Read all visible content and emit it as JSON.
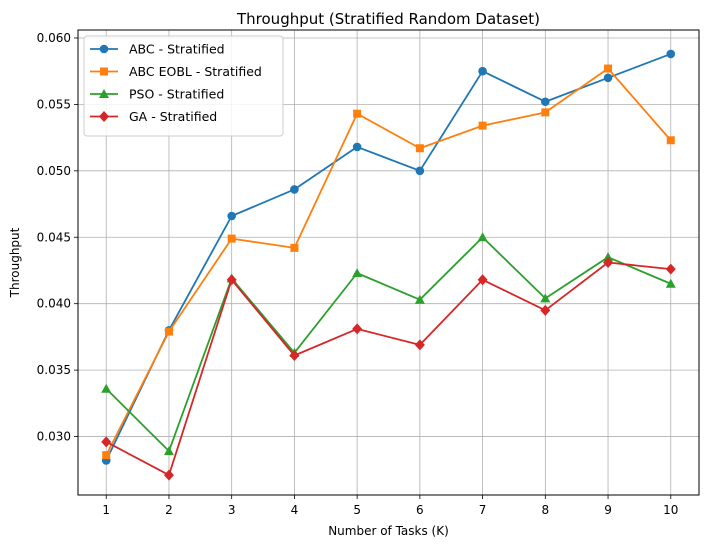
{
  "chart_data": {
    "type": "line",
    "title": "Throughput (Stratified Random Dataset)",
    "xlabel": "Number of Tasks (K)",
    "ylabel": "Throughput",
    "x": [
      1,
      2,
      3,
      4,
      5,
      6,
      7,
      8,
      9,
      10
    ],
    "xlim": [
      0.55,
      10.45
    ],
    "ylim": [
      0.0256,
      0.0606
    ],
    "yticks": [
      "0.030",
      "0.035",
      "0.040",
      "0.045",
      "0.050",
      "0.055",
      "0.060"
    ],
    "ytick_values": [
      0.03,
      0.035,
      0.04,
      0.045,
      0.05,
      0.055,
      0.06
    ],
    "grid": true,
    "legend_position": "top-left",
    "series": [
      {
        "name": "ABC - Stratified",
        "color": "#1f77b4",
        "marker": "circle",
        "values": [
          0.0282,
          0.038,
          0.0466,
          0.0486,
          0.0518,
          0.05,
          0.0575,
          0.0552,
          0.057,
          0.0588
        ]
      },
      {
        "name": "ABC EOBL - Stratified",
        "color": "#ff7f0e",
        "marker": "square",
        "values": [
          0.0286,
          0.0379,
          0.0449,
          0.0442,
          0.0543,
          0.0517,
          0.0534,
          0.0544,
          0.0577,
          0.0523
        ]
      },
      {
        "name": "PSO - Stratified",
        "color": "#2ca02c",
        "marker": "triangle",
        "values": [
          0.0336,
          0.0289,
          0.0419,
          0.0363,
          0.0423,
          0.0403,
          0.045,
          0.0404,
          0.0435,
          0.0415
        ]
      },
      {
        "name": "GA - Stratified",
        "color": "#d62728",
        "marker": "diamond",
        "values": [
          0.0296,
          0.0271,
          0.0418,
          0.0361,
          0.0381,
          0.0369,
          0.0418,
          0.0395,
          0.0431,
          0.0426
        ]
      }
    ]
  }
}
